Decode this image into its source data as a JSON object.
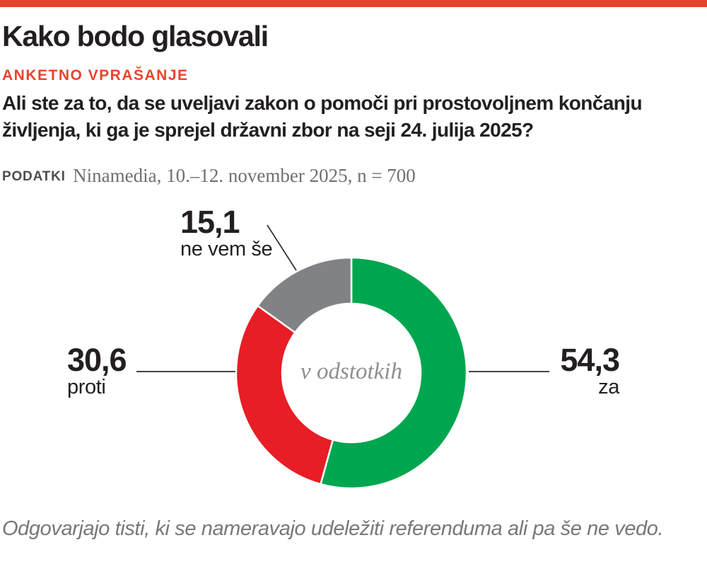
{
  "page": {
    "title": "Kako bodo glasovali",
    "kicker": "ANKETNO VPRAŠANJE",
    "question": "Ali ste za to, da se uveljavi zakon o pomoči pri prostovoljnem končanju življenja, ki ga je sprejel državni zbor na seji 24. julija 2025?",
    "source_label": "PODATKI",
    "source_text": "Ninamedia, 10.–12. november 2025, n = 700",
    "footnote": "Odgovarjajo tisti, ki se nameravajo udeležiti referenduma ali pa še ne vedo."
  },
  "colors": {
    "accent": "#E8442C",
    "za_green": "#00A64F",
    "proti_red": "#E81D25",
    "ne_vem_gray": "#808285",
    "text": "#231F20",
    "muted_serif": "#6F6F6F",
    "center_label": "#8F8F8F"
  },
  "chart_data": {
    "type": "pie",
    "subtype": "donut",
    "title": "",
    "center_label": "v odstotkih",
    "units": "percent",
    "total": 100,
    "start_angle_deg": 0,
    "direction": "clockwise",
    "segments": [
      {
        "label": "za",
        "value": 54.3,
        "color": "#00A64F"
      },
      {
        "label": "proti",
        "value": 30.6,
        "color": "#E81D25"
      },
      {
        "label": "ne vem še",
        "value": 15.1,
        "color": "#808285"
      }
    ]
  },
  "callouts": {
    "za": {
      "value": "54,3",
      "label": "za"
    },
    "proti": {
      "value": "30,6",
      "label": "proti"
    },
    "ne_vem": {
      "value": "15,1",
      "label": "ne vem še"
    }
  }
}
